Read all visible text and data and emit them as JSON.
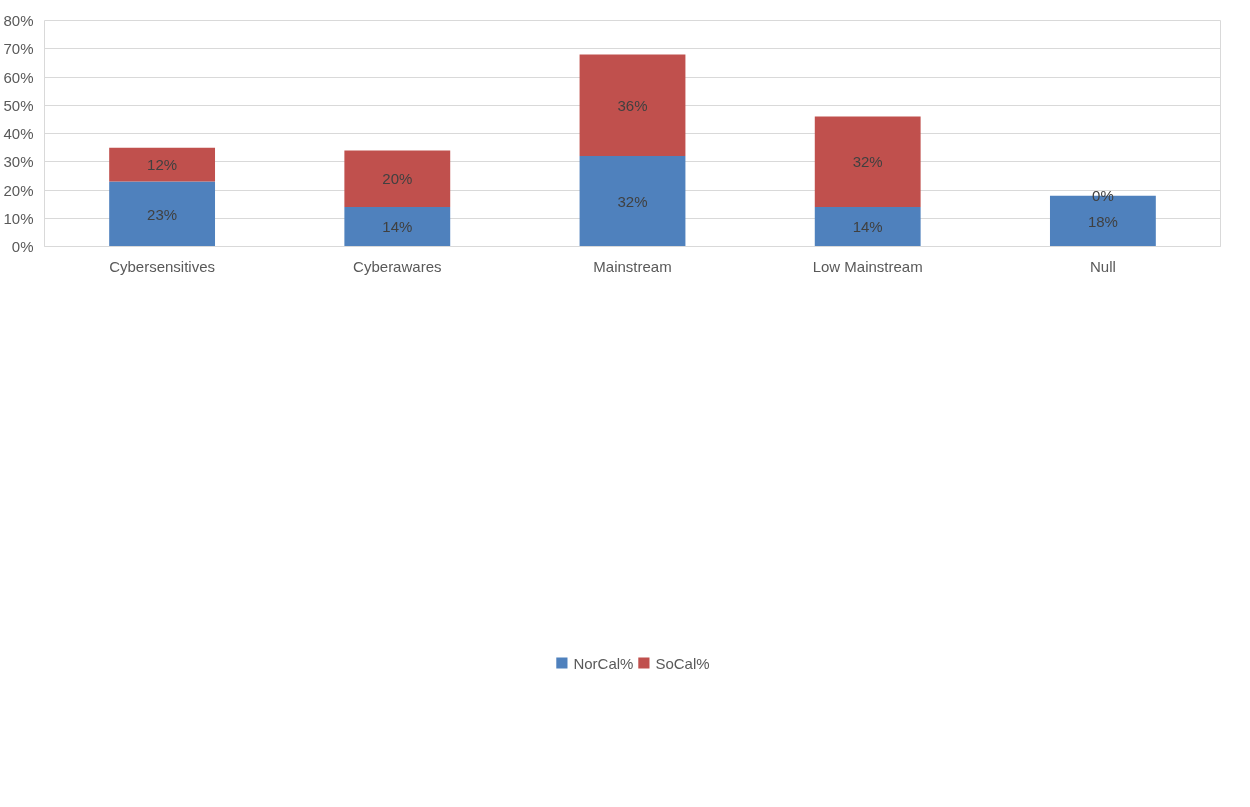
{
  "chart_data": {
    "type": "bar",
    "stacked": true,
    "categories": [
      "Cybersensitives",
      "Cyberawares",
      "Mainstream",
      "Low Mainstream",
      "Null"
    ],
    "series": [
      {
        "name": "NorCal%",
        "color": "#4f81bd",
        "values": [
          23,
          14,
          32,
          14,
          18
        ],
        "value_labels": [
          "23%",
          "14%",
          "32%",
          "14%",
          "18%"
        ]
      },
      {
        "name": "SoCal%",
        "color": "#c0504d",
        "values": [
          12,
          20,
          36,
          32,
          0
        ],
        "value_labels": [
          "12%",
          "20%",
          "36%",
          "32%",
          "0%"
        ]
      }
    ],
    "ylim": [
      0,
      80
    ],
    "yticks": [
      {
        "value": 0,
        "label": "0%"
      },
      {
        "value": 10,
        "label": "10%"
      },
      {
        "value": 20,
        "label": "20%"
      },
      {
        "value": 30,
        "label": "30%"
      },
      {
        "value": 40,
        "label": "40%"
      },
      {
        "value": 50,
        "label": "50%"
      },
      {
        "value": 60,
        "label": "60%"
      },
      {
        "value": 70,
        "label": "70%"
      },
      {
        "value": 80,
        "label": "80%"
      }
    ],
    "grid": "y",
    "legend": "bottom"
  }
}
